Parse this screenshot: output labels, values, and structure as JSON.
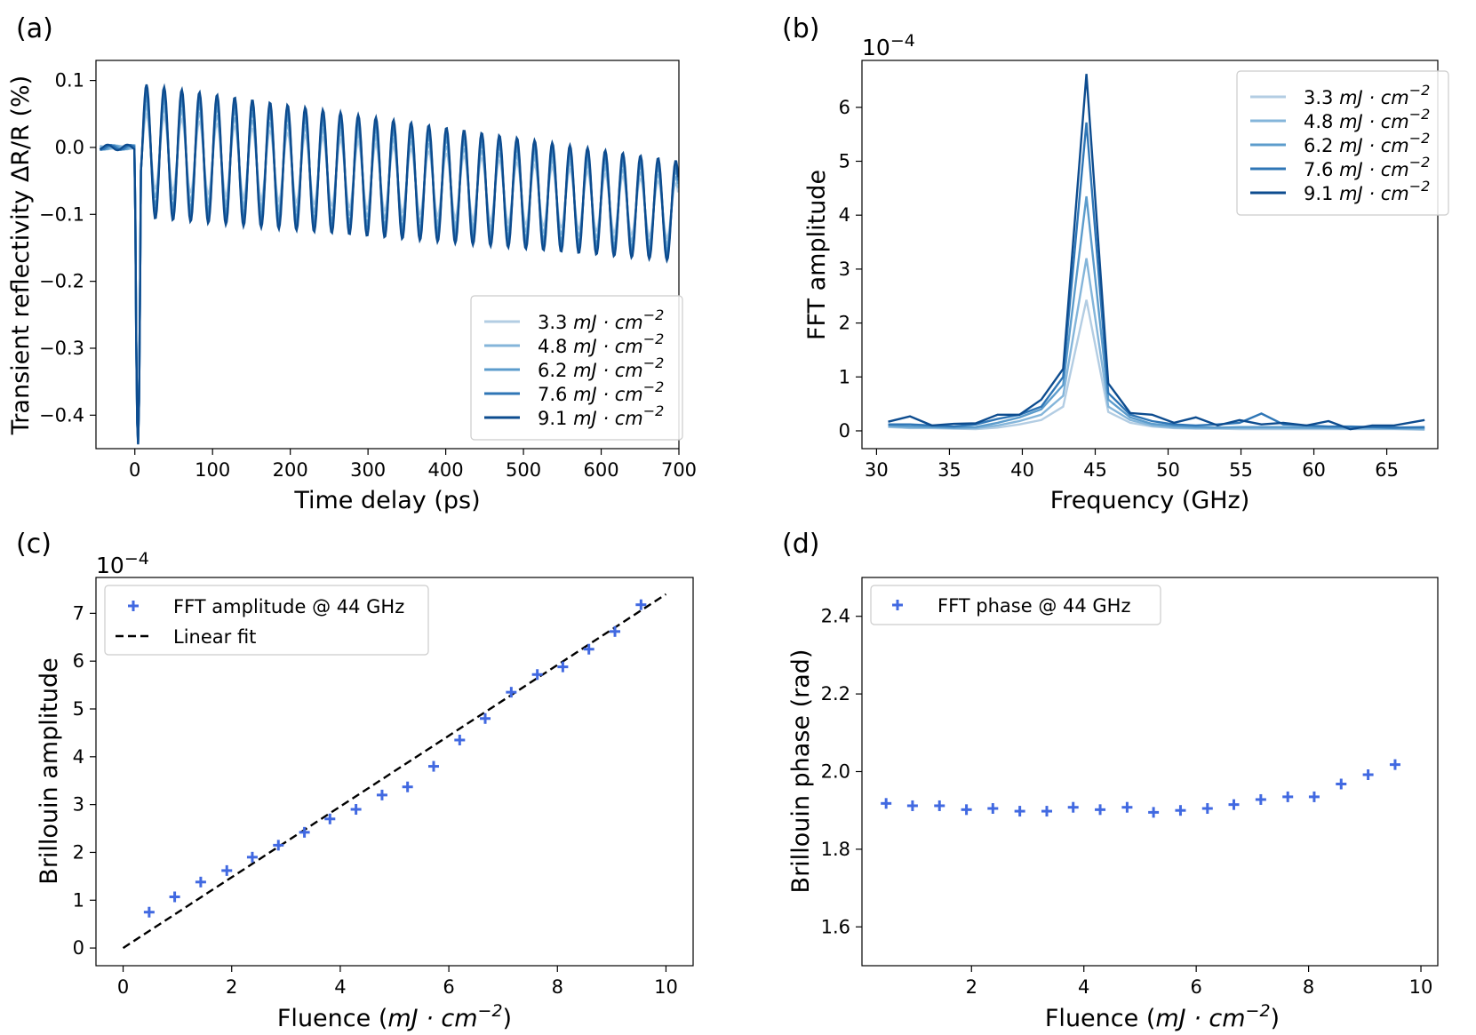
{
  "panels": [
    {
      "letter": "(a)",
      "xlabel": "Time delay (ps)",
      "ylabel": "Transient reflectivity ΔR/R (%)",
      "xticks": [
        "0",
        "100",
        "200",
        "300",
        "400",
        "500",
        "600",
        "700"
      ],
      "yticks": [
        "0.1",
        "0.0",
        "−0.1",
        "−0.2",
        "−0.3",
        "−0.4"
      ],
      "legend": [
        {
          "num": "3.3",
          "unit": "mJ · cm",
          "exp": "−2"
        },
        {
          "num": "4.8",
          "unit": "mJ · cm",
          "exp": "−2"
        },
        {
          "num": "6.2",
          "unit": "mJ · cm",
          "exp": "−2"
        },
        {
          "num": "7.6",
          "unit": "mJ · cm",
          "exp": "−2"
        },
        {
          "num": "9.1",
          "unit": "mJ · cm",
          "exp": "−2"
        }
      ]
    },
    {
      "letter": "(b)",
      "offset": "10",
      "offset_exp": "−4",
      "xlabel": "Frequency (GHz)",
      "ylabel": "FFT amplitude",
      "xticks": [
        "30",
        "35",
        "40",
        "45",
        "50",
        "55",
        "60",
        "65"
      ],
      "yticks": [
        "0",
        "1",
        "2",
        "3",
        "4",
        "5",
        "6"
      ],
      "legend": [
        {
          "num": "3.3",
          "unit": "mJ · cm",
          "exp": "−2"
        },
        {
          "num": "4.8",
          "unit": "mJ · cm",
          "exp": "−2"
        },
        {
          "num": "6.2",
          "unit": "mJ · cm",
          "exp": "−2"
        },
        {
          "num": "7.6",
          "unit": "mJ · cm",
          "exp": "−2"
        },
        {
          "num": "9.1",
          "unit": "mJ · cm",
          "exp": "−2"
        }
      ]
    },
    {
      "letter": "(c)",
      "offset": "10",
      "offset_exp": "−4",
      "xlabel_pre": "Fluence (",
      "xlabel_unit": "mJ · cm",
      "xlabel_exp": "−2",
      "xlabel_post": ")",
      "ylabel": "Brillouin amplitude",
      "xticks": [
        "0",
        "2",
        "4",
        "6",
        "8",
        "10"
      ],
      "yticks": [
        "0",
        "1",
        "2",
        "3",
        "4",
        "5",
        "6",
        "7"
      ],
      "legend": [
        {
          "label": "FFT amplitude @ 44 GHz"
        },
        {
          "label": "Linear fit"
        }
      ]
    },
    {
      "letter": "(d)",
      "xlabel_pre": "Fluence (",
      "xlabel_unit": "mJ · cm",
      "xlabel_exp": "−2",
      "xlabel_post": ")",
      "ylabel": "Brillouin phase (rad)",
      "xticks": [
        "2",
        "4",
        "6",
        "8",
        "10"
      ],
      "yticks": [
        "1.6",
        "1.8",
        "2.0",
        "2.2",
        "2.4"
      ],
      "legend": [
        {
          "label": "FFT phase @ 44 GHz"
        }
      ]
    }
  ],
  "colors": {
    "series": [
      "#b3cde3",
      "#84b5da",
      "#5c9ccc",
      "#2f76b6",
      "#0d4c8f"
    ],
    "marker": "#4169e1",
    "fit": "#000000"
  },
  "chart_data": [
    {
      "type": "line",
      "title": "",
      "xlabel": "Time delay (ps)",
      "ylabel": "Transient reflectivity ΔR/R (%)",
      "xlim": [
        -50,
        700
      ],
      "ylim": [
        -0.45,
        0.13
      ],
      "signal_model": {
        "onset_ps": 0,
        "dip_min": -0.445,
        "oscillation_frequency_GHz": 44,
        "oscillation_period_ps": 22.7,
        "approx_peak_amplitude_9.1": 0.1,
        "baseline_end": -0.09
      },
      "series": [
        {
          "name": "3.3 mJ·cm^-2",
          "scale": 0.55
        },
        {
          "name": "4.8 mJ·cm^-2",
          "scale": 0.68
        },
        {
          "name": "6.2 mJ·cm^-2",
          "scale": 0.8
        },
        {
          "name": "7.6 mJ·cm^-2",
          "scale": 0.9
        },
        {
          "name": "9.1 mJ·cm^-2",
          "scale": 1.0
        }
      ]
    },
    {
      "type": "line",
      "title": "",
      "xlabel": "Frequency (GHz)",
      "ylabel": "FFT amplitude",
      "y_multiplier": "1e-4",
      "xlim": [
        29,
        68.5
      ],
      "ylim": [
        -0.33,
        6.87
      ],
      "x": [
        30.8,
        32.3,
        33.8,
        35.3,
        36.8,
        38.3,
        39.8,
        41.3,
        42.8,
        44.4,
        45.9,
        47.4,
        48.9,
        50.4,
        51.9,
        53.4,
        54.9,
        56.4,
        57.9,
        59.5,
        61.0,
        62.5,
        64.0,
        65.5,
        67.6
      ],
      "series": [
        {
          "name": "3.3 mJ·cm^-2",
          "values": [
            0.07,
            0.05,
            0.05,
            0.04,
            0.03,
            0.06,
            0.12,
            0.2,
            0.45,
            2.43,
            0.35,
            0.15,
            0.08,
            0.05,
            0.04,
            0.04,
            0.03,
            0.03,
            0.03,
            0.03,
            0.03,
            0.03,
            0.03,
            0.03,
            0.02
          ]
        },
        {
          "name": "4.8 mJ·cm^-2",
          "values": [
            0.08,
            0.06,
            0.06,
            0.05,
            0.05,
            0.1,
            0.18,
            0.3,
            0.65,
            3.2,
            0.45,
            0.2,
            0.1,
            0.06,
            0.05,
            0.05,
            0.05,
            0.05,
            0.05,
            0.05,
            0.05,
            0.04,
            0.04,
            0.04,
            0.03
          ]
        },
        {
          "name": "6.2 mJ·cm^-2",
          "values": [
            0.1,
            0.08,
            0.07,
            0.06,
            0.07,
            0.15,
            0.25,
            0.4,
            0.85,
            4.35,
            0.58,
            0.25,
            0.13,
            0.09,
            0.07,
            0.06,
            0.07,
            0.07,
            0.07,
            0.06,
            0.06,
            0.06,
            0.06,
            0.05,
            0.05
          ]
        },
        {
          "name": "7.6 mJ·cm^-2",
          "values": [
            0.12,
            0.12,
            0.1,
            0.08,
            0.12,
            0.22,
            0.3,
            0.45,
            1.0,
            5.72,
            0.7,
            0.3,
            0.18,
            0.12,
            0.1,
            0.12,
            0.15,
            0.32,
            0.12,
            0.1,
            0.08,
            0.08,
            0.07,
            0.06,
            0.07
          ]
        },
        {
          "name": "9.1 mJ·cm^-2",
          "values": [
            0.17,
            0.27,
            0.1,
            0.13,
            0.14,
            0.3,
            0.3,
            0.58,
            1.15,
            6.62,
            0.88,
            0.33,
            0.3,
            0.15,
            0.25,
            0.1,
            0.2,
            0.12,
            0.15,
            0.1,
            0.18,
            0.03,
            0.1,
            0.1,
            0.2
          ]
        }
      ]
    },
    {
      "type": "scatter",
      "title": "",
      "xlabel": "Fluence (mJ·cm^-2)",
      "ylabel": "Brillouin amplitude",
      "y_multiplier": "1e-4",
      "xlim": [
        -0.5,
        10.5
      ],
      "ylim": [
        -0.37,
        7.75
      ],
      "series": [
        {
          "name": "FFT amplitude @ 44 GHz",
          "x": [
            0.48,
            0.95,
            1.43,
            1.91,
            2.38,
            2.86,
            3.34,
            3.81,
            4.29,
            4.77,
            5.24,
            5.72,
            6.2,
            6.67,
            7.15,
            7.63,
            8.1,
            8.58,
            9.06,
            9.54
          ],
          "y": [
            0.75,
            1.07,
            1.38,
            1.62,
            1.9,
            2.15,
            2.42,
            2.7,
            2.9,
            3.2,
            3.37,
            3.8,
            4.35,
            4.8,
            5.35,
            5.72,
            5.88,
            6.25,
            6.62,
            7.18
          ]
        },
        {
          "name": "Linear fit",
          "x": [
            0,
            10
          ],
          "y": [
            0,
            7.4
          ]
        }
      ]
    },
    {
      "type": "scatter",
      "title": "",
      "xlabel": "Fluence (mJ·cm^-2)",
      "ylabel": "Brillouin phase (rad)",
      "xlim": [
        0.05,
        10.3
      ],
      "ylim": [
        1.5,
        2.5
      ],
      "series": [
        {
          "name": "FFT phase @ 44 GHz",
          "x": [
            0.48,
            0.95,
            1.43,
            1.91,
            2.38,
            2.86,
            3.34,
            3.81,
            4.29,
            4.77,
            5.24,
            5.72,
            6.2,
            6.67,
            7.15,
            7.63,
            8.1,
            8.58,
            9.06,
            9.54
          ],
          "y": [
            1.918,
            1.912,
            1.912,
            1.902,
            1.905,
            1.898,
            1.898,
            1.908,
            1.902,
            1.908,
            1.895,
            1.9,
            1.905,
            1.915,
            1.928,
            1.935,
            1.935,
            1.968,
            1.992,
            2.018
          ]
        }
      ]
    }
  ]
}
